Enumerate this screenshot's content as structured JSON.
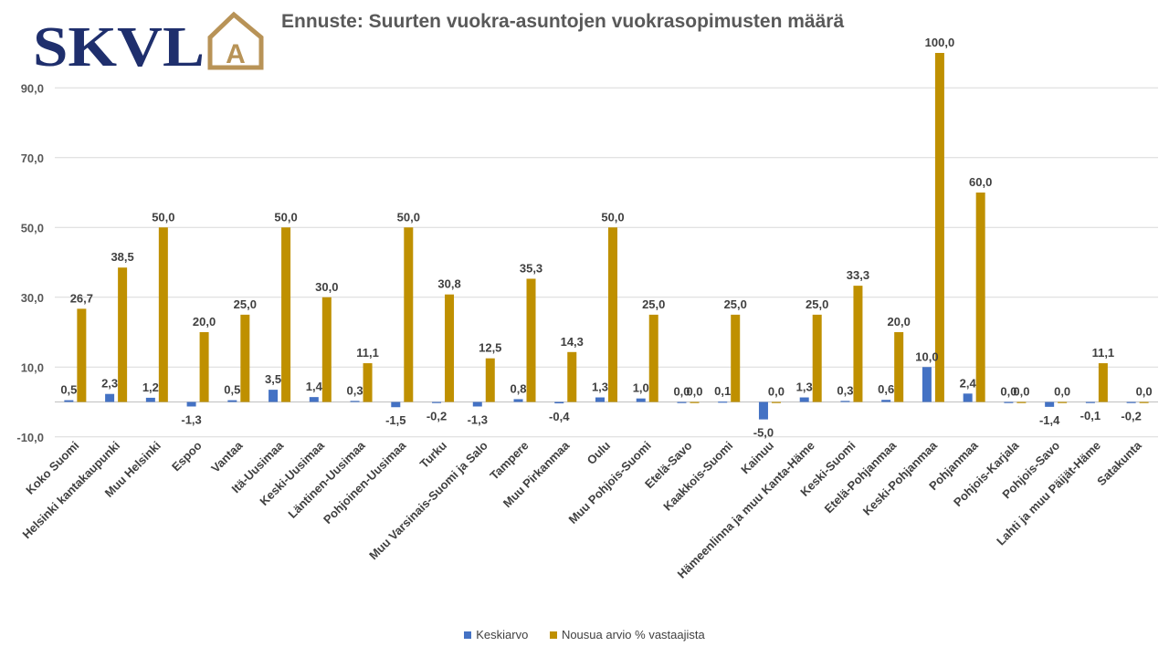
{
  "logo": {
    "text": "SKVL",
    "mark": "A",
    "color": "#1f2f6d",
    "mark_color": "#b89357"
  },
  "chart_data": {
    "type": "bar",
    "title": "Ennuste: Suurten vuokra-asuntojen vuokrasopimusten määrä",
    "xlabel": "",
    "ylabel": "",
    "ylim": [
      -10,
      100
    ],
    "yticks": [
      -10,
      10,
      30,
      50,
      70,
      90
    ],
    "grid": true,
    "legend_position": "bottom",
    "categories": [
      "Koko Suomi",
      "Helsinki kantakaupunki",
      "Muu Helsinki",
      "Espoo",
      "Vantaa",
      "Itä-Uusimaa",
      "Keski-Uusimaa",
      "Läntinen-Uusimaa",
      "Pohjoinen-Uusimaa",
      "Turku",
      "Muu Varsinais-Suomi ja Salo",
      "Tampere",
      "Muu Pirkanmaa",
      "Oulu",
      "Muu Pohjois-Suomi",
      "Etelä-Savo",
      "Kaakkois-Suomi",
      "Kainuu",
      "Hämeenlinna ja muu Kanta-Häme",
      "Keski-Suomi",
      "Etelä-Pohjanmaa",
      "Keski-Pohjanmaa",
      "Pohjanmaa",
      "Pohjois-Karjala",
      "Pohjois-Savo",
      "Lahti ja muu Päijät-Häme",
      "Satakunta"
    ],
    "series": [
      {
        "name": "Keskiarvo",
        "color": "#4472c4",
        "values": [
          0.5,
          2.3,
          1.2,
          -1.3,
          0.5,
          3.5,
          1.4,
          0.3,
          -1.5,
          -0.2,
          -1.3,
          0.8,
          -0.4,
          1.3,
          1.0,
          0.0,
          0.1,
          -5.0,
          1.3,
          0.3,
          0.6,
          10.0,
          2.4,
          0.0,
          -1.4,
          -0.1,
          -0.2
        ]
      },
      {
        "name": "Nousua arvio % vastaajista",
        "color": "#bf9000",
        "values": [
          26.7,
          38.5,
          50.0,
          20.0,
          25.0,
          50.0,
          30.0,
          11.1,
          50.0,
          30.8,
          12.5,
          35.3,
          14.3,
          50.0,
          25.0,
          0.0,
          25.0,
          0.0,
          25.0,
          33.3,
          20.0,
          100.0,
          60.0,
          0.0,
          0.0,
          11.1,
          0.0
        ]
      }
    ]
  }
}
